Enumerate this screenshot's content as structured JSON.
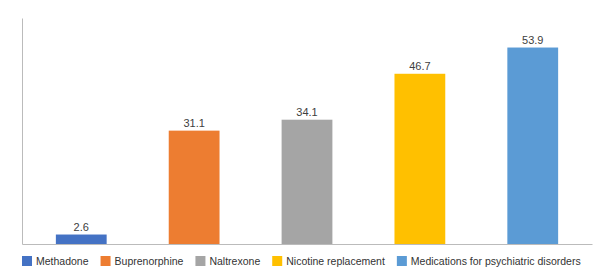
{
  "chart_data": {
    "type": "bar",
    "categories": [
      "Methadone",
      "Buprenorphine",
      "Naltrexone",
      "Nicotine replacement",
      "Medications for psychiatric disorders"
    ],
    "values": [
      2.6,
      31.1,
      34.1,
      46.7,
      53.9
    ],
    "colors": [
      "#4472c4",
      "#ed7d31",
      "#a5a5a5",
      "#ffc000",
      "#5b9bd5"
    ],
    "ylim": [
      0,
      62
    ],
    "data_labels": true,
    "tick_labels": false,
    "grid": false,
    "legend": "bottom"
  }
}
